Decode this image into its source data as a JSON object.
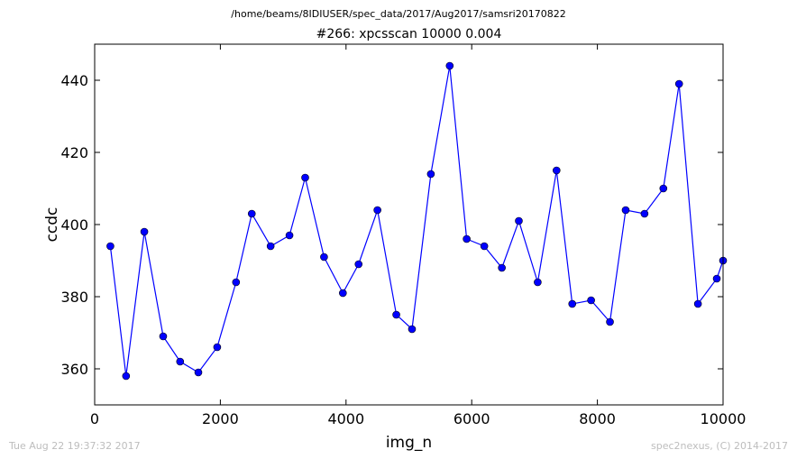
{
  "header": {
    "path": "/home/beams/8IDIUSER/spec_data/2017/Aug2017/samsri20170822"
  },
  "footer": {
    "timestamp": "Tue Aug 22 19:37:32 2017",
    "credit": "spec2nexus, (C) 2014-2017"
  },
  "chart_data": {
    "type": "line",
    "title": "#266: xpcsscan 10000 0.004",
    "xlabel": "img_n",
    "ylabel": "ccdc",
    "xlim": [
      0,
      10000
    ],
    "ylim": [
      350,
      450
    ],
    "xticks": [
      0,
      2000,
      4000,
      6000,
      8000,
      10000
    ],
    "yticks": [
      360,
      380,
      400,
      420,
      440
    ],
    "grid": false,
    "color": "#0000ff",
    "marker": "circle",
    "series": [
      {
        "x": [
          250,
          500,
          790,
          1090,
          1360,
          1650,
          1950,
          2250,
          2500,
          2800,
          3100,
          3350,
          3650,
          3950,
          4200,
          4500,
          4800,
          5050,
          5350,
          5650,
          5920,
          6200,
          6480,
          6750,
          7050,
          7350,
          7600,
          7900,
          8200,
          8450,
          8750,
          9050,
          9300,
          9600,
          9900,
          10000
        ],
        "y": [
          394,
          358,
          398,
          369,
          362,
          359,
          366,
          384,
          403,
          394,
          397,
          413,
          391,
          381,
          389,
          404,
          375,
          371,
          414,
          444,
          396,
          394,
          388,
          401,
          384,
          415,
          378,
          379,
          373,
          404,
          403,
          410,
          439,
          378,
          385,
          390
        ]
      }
    ]
  }
}
